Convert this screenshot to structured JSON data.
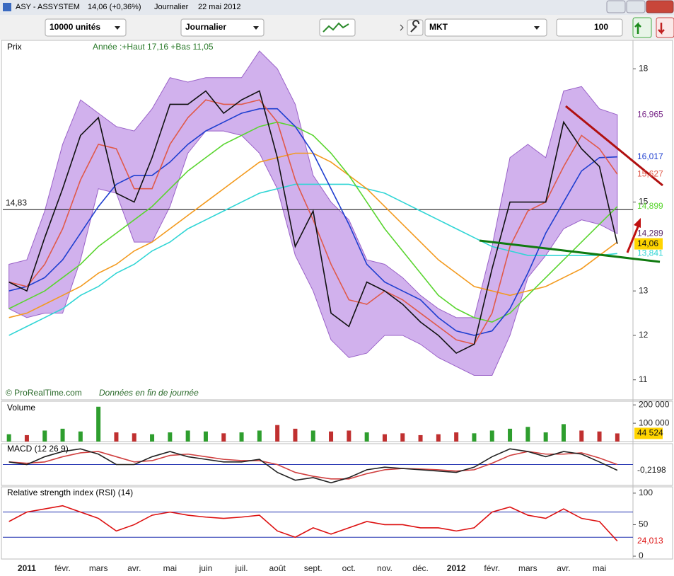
{
  "window": {
    "symbol": "ASY - ASSYSTEM",
    "quote": "14,06 (+0,36%)",
    "period": "Journalier",
    "date": "22 mai 2012"
  },
  "toolbar": {
    "quantity": "10000 unités",
    "period": "Journalier",
    "order_type": "MKT",
    "amount": "100"
  },
  "chart_data": [
    {
      "type": "line",
      "title": "Prix",
      "subtitle": "Année :+Haut 17,16 +Bas 11,05",
      "source": "© ProRealTime.com",
      "note": "Données en fin de journée",
      "ylim": [
        10.55,
        18.64
      ],
      "yticks": [
        11,
        12,
        13,
        15,
        18
      ],
      "reference_line": {
        "value": 14.83,
        "label": "14,83"
      },
      "band": {
        "color": "#c9a3ea",
        "upper": [
          13.6,
          13.7,
          14.8,
          16.3,
          17.3,
          17.0,
          16.7,
          16.6,
          17.1,
          17.8,
          17.7,
          17.8,
          17.8,
          17.8,
          18.4,
          18.0,
          17.2,
          15.6,
          15.0,
          14.6,
          13.7,
          13.6,
          13.3,
          12.9,
          12.6,
          12.4,
          12.4,
          14.0,
          16.0,
          16.3,
          16.0,
          17.5,
          17.6,
          17.1,
          16.965
        ],
        "lower": [
          12.6,
          12.4,
          12.5,
          12.5,
          13.7,
          15.3,
          15.2,
          14.1,
          14.1,
          14.9,
          16.1,
          16.6,
          16.6,
          16.5,
          16.1,
          15.3,
          13.8,
          13.0,
          11.9,
          11.5,
          11.6,
          12.0,
          12.0,
          11.8,
          11.5,
          11.3,
          11.1,
          11.1,
          12.0,
          13.3,
          13.8,
          14.4,
          14.6,
          14.5,
          14.289
        ],
        "upper_label": "16,965",
        "lower_label": "14,289"
      },
      "series": [
        {
          "color": "#30d5d5",
          "values": [
            12.0,
            12.2,
            12.4,
            12.6,
            12.9,
            13.1,
            13.4,
            13.6,
            13.9,
            14.1,
            14.4,
            14.6,
            14.8,
            15.0,
            15.2,
            15.3,
            15.4,
            15.4,
            15.4,
            15.4,
            15.3,
            15.2,
            15.0,
            14.8,
            14.6,
            14.4,
            14.2,
            14.0,
            13.9,
            13.8,
            13.8,
            13.8,
            13.8,
            13.8,
            13.841
          ],
          "last_label": "13,841"
        },
        {
          "color": "#f39a1e",
          "values": [
            12.4,
            12.5,
            12.7,
            12.9,
            13.1,
            13.4,
            13.6,
            13.9,
            14.1,
            14.4,
            14.7,
            15.0,
            15.3,
            15.6,
            15.9,
            16.0,
            16.1,
            16.1,
            15.9,
            15.6,
            15.3,
            14.9,
            14.5,
            14.1,
            13.7,
            13.4,
            13.1,
            13.0,
            12.9,
            13.0,
            13.1,
            13.3,
            13.5,
            13.8,
            14.1
          ]
        },
        {
          "color": "#5ad530",
          "values": [
            12.6,
            12.8,
            13.0,
            13.3,
            13.6,
            14.0,
            14.3,
            14.6,
            14.9,
            15.3,
            15.7,
            16.0,
            16.3,
            16.5,
            16.7,
            16.8,
            16.7,
            16.5,
            16.1,
            15.6,
            15.0,
            14.4,
            13.9,
            13.4,
            12.9,
            12.6,
            12.4,
            12.3,
            12.5,
            12.9,
            13.3,
            13.7,
            14.1,
            14.5,
            14.899
          ],
          "last_label": "14,899"
        },
        {
          "color": "#1f3fd0",
          "values": [
            13.0,
            13.1,
            13.3,
            13.7,
            14.3,
            14.9,
            15.4,
            15.6,
            15.6,
            15.9,
            16.3,
            16.6,
            16.8,
            17.0,
            17.1,
            17.1,
            16.7,
            16.1,
            15.3,
            14.5,
            13.6,
            13.2,
            13.0,
            12.8,
            12.4,
            12.1,
            12.0,
            12.1,
            12.6,
            13.4,
            14.3,
            15.0,
            15.7,
            16.0,
            16.017
          ],
          "last_label": "16,017"
        },
        {
          "color": "#e05a4a",
          "values": [
            13.2,
            13.1,
            13.6,
            14.4,
            15.5,
            16.3,
            16.2,
            15.3,
            15.3,
            16.3,
            16.9,
            17.3,
            17.2,
            17.2,
            17.3,
            16.8,
            15.5,
            14.6,
            13.6,
            12.8,
            12.7,
            13.0,
            12.8,
            12.5,
            12.2,
            11.9,
            11.8,
            12.5,
            14.0,
            14.8,
            15.0,
            15.8,
            16.5,
            16.2,
            15.627
          ],
          "last_label": "15,627"
        },
        {
          "color": "#111111",
          "values": [
            13.2,
            13.0,
            14.2,
            15.3,
            16.5,
            16.9,
            15.2,
            15.0,
            16.0,
            17.2,
            17.2,
            17.5,
            17.0,
            17.3,
            17.5,
            16.0,
            14.0,
            14.8,
            12.5,
            12.2,
            13.2,
            13.0,
            12.7,
            12.3,
            12.0,
            11.6,
            11.8,
            13.5,
            15.0,
            15.0,
            15.0,
            16.8,
            16.2,
            15.8,
            14.06
          ],
          "last_label": "14,06",
          "highlight": "#ffd400"
        }
      ]
    },
    {
      "type": "bar",
      "title": "Volume",
      "ylim": [
        0,
        220000
      ],
      "yticks": [
        {
          "value": 200000,
          "label": "200 000"
        },
        {
          "value": 100000,
          "label": "100 000"
        }
      ],
      "up_color": "#2e9e2e",
      "down_color": "#c03030",
      "last_label": "44 524",
      "highlight": "#ffd400",
      "values": [
        40000,
        35000,
        60000,
        70000,
        55000,
        190000,
        50000,
        45000,
        40000,
        50000,
        60000,
        55000,
        45000,
        50000,
        60000,
        90000,
        70000,
        60000,
        55000,
        60000,
        50000,
        40000,
        45000,
        35000,
        40000,
        50000,
        45000,
        60000,
        70000,
        80000,
        50000,
        95000,
        60000,
        55000,
        44524
      ]
    },
    {
      "type": "line",
      "title": "MACD (12 26 9)",
      "ylim": [
        -0.8,
        0.8
      ],
      "levels": [
        0
      ],
      "level_color": "#2030b0",
      "series": [
        {
          "color": "#d04040",
          "values": [
            0.1,
            0.05,
            0.1,
            0.3,
            0.45,
            0.5,
            0.3,
            0.1,
            0.15,
            0.35,
            0.4,
            0.3,
            0.2,
            0.15,
            0.15,
            0.0,
            -0.3,
            -0.45,
            -0.55,
            -0.55,
            -0.35,
            -0.2,
            -0.15,
            -0.17,
            -0.2,
            -0.25,
            -0.2,
            0.05,
            0.35,
            0.5,
            0.4,
            0.4,
            0.45,
            0.25,
            0.0
          ]
        },
        {
          "color": "#222222",
          "values": [
            0.1,
            0.0,
            0.3,
            0.5,
            0.6,
            0.4,
            0.0,
            0.0,
            0.3,
            0.5,
            0.3,
            0.2,
            0.1,
            0.1,
            0.2,
            -0.3,
            -0.6,
            -0.5,
            -0.7,
            -0.5,
            -0.2,
            -0.1,
            -0.15,
            -0.2,
            -0.25,
            -0.3,
            -0.1,
            0.3,
            0.6,
            0.5,
            0.3,
            0.5,
            0.4,
            0.1,
            -0.2198
          ],
          "last_label": "-0,2198"
        }
      ]
    },
    {
      "type": "line",
      "title": "Relative strength index (RSI) (14)",
      "ylim": [
        -4.5,
        110
      ],
      "yticks": [
        0,
        50,
        100
      ],
      "levels": [
        30,
        70
      ],
      "level_color": "#2030b0",
      "categories": [
        null,
        "2011",
        null,
        "févr.",
        null,
        "mars",
        null,
        "avr.",
        null,
        "mai",
        null,
        "juin",
        null,
        "juil.",
        null,
        "août",
        null,
        "sept.",
        null,
        "oct.",
        null,
        "nov.",
        null,
        "déc.",
        null,
        "2012",
        null,
        "févr.",
        null,
        "mars",
        null,
        "avr.",
        null,
        "mai",
        null
      ],
      "series": [
        {
          "color": "#dd1111",
          "values": [
            55,
            70,
            75,
            80,
            70,
            60,
            40,
            50,
            65,
            70,
            65,
            62,
            60,
            62,
            65,
            40,
            30,
            45,
            35,
            45,
            55,
            50,
            50,
            45,
            45,
            40,
            45,
            70,
            78,
            65,
            60,
            75,
            60,
            55,
            24.013
          ],
          "last_label": "24,013"
        }
      ]
    }
  ]
}
